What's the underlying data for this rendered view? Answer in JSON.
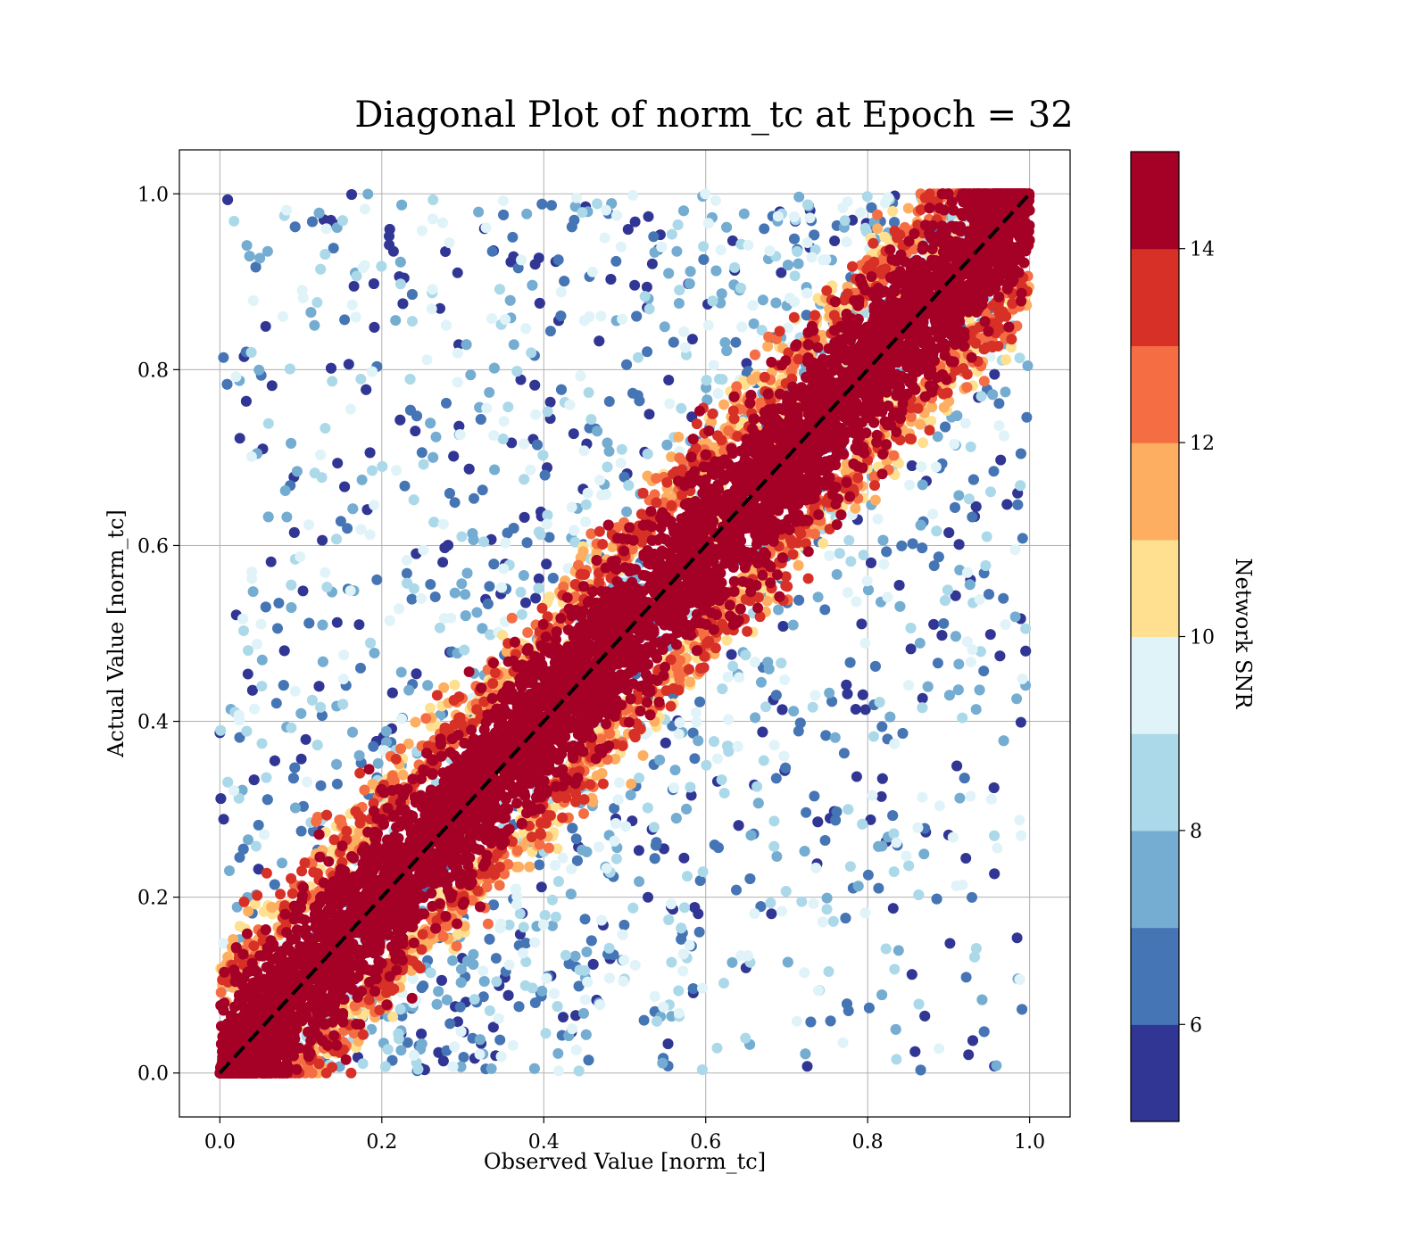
{
  "chart_data": {
    "type": "scatter",
    "title": "Diagonal Plot of norm_tc at Epoch = 32",
    "xlabel": "Observed Value [norm_tc]",
    "ylabel": "Actual Value [norm_tc]",
    "xlim": [
      -0.05,
      1.05
    ],
    "ylim": [
      -0.05,
      1.05
    ],
    "xticks": [
      "0.0",
      "0.2",
      "0.4",
      "0.6",
      "0.8",
      "1.0"
    ],
    "yticks": [
      "0.0",
      "0.2",
      "0.4",
      "0.6",
      "0.8",
      "1.0"
    ],
    "grid": true,
    "reference_line": {
      "x": [
        0,
        1
      ],
      "y": [
        0,
        1
      ],
      "style": "dashed",
      "color": "#000000"
    },
    "colorbar": {
      "label": "Network SNR",
      "range": [
        5,
        15
      ],
      "ticks": [
        "6",
        "8",
        "10",
        "12",
        "14"
      ],
      "colors": [
        "#313695",
        "#4575b4",
        "#74add1",
        "#abd9e9",
        "#e0f3f8",
        "#fee090",
        "#fdae61",
        "#f46d43",
        "#d73027",
        "#a50026"
      ]
    },
    "distribution": {
      "description_points": "dense red (high SNR) band along diagonal; lower-SNR blue points scattered upper-left and lower-right",
      "band_half_width_high_snr": 0.07,
      "approx_point_count": 60000
    }
  }
}
